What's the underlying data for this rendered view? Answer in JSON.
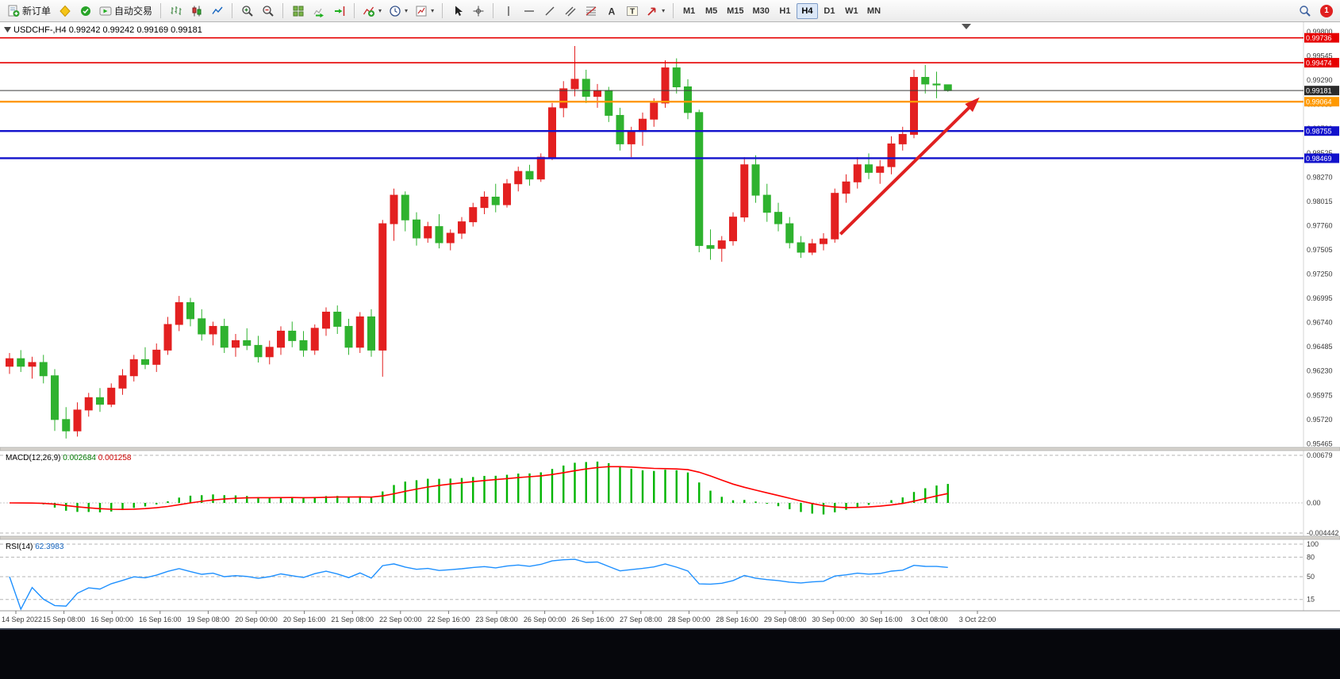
{
  "app": {
    "toolbar": {
      "new_order_label": "新订单",
      "autotrading_label": "自动交易",
      "timeframes": [
        "M1",
        "M5",
        "M15",
        "M30",
        "H1",
        "H4",
        "D1",
        "W1",
        "MN"
      ],
      "active_timeframe": "H4",
      "notification_count": "1"
    }
  },
  "chart_data": {
    "type": "candlestick",
    "title": "USDCHF-,H4",
    "ohlc_text": "0.99242 0.99242 0.99169 0.99181",
    "colors": {
      "bull": "#e32020",
      "bear": "#2fb22f"
    },
    "candles": [
      [
        0.9628,
        0.9642,
        0.962,
        0.9636
      ],
      [
        0.9636,
        0.9645,
        0.9622,
        0.9628
      ],
      [
        0.9628,
        0.9638,
        0.9615,
        0.9632
      ],
      [
        0.9632,
        0.964,
        0.961,
        0.9618
      ],
      [
        0.9618,
        0.9625,
        0.956,
        0.9572
      ],
      [
        0.9572,
        0.9585,
        0.9552,
        0.956
      ],
      [
        0.956,
        0.959,
        0.9554,
        0.9582
      ],
      [
        0.9582,
        0.96,
        0.9575,
        0.9595
      ],
      [
        0.9595,
        0.9605,
        0.958,
        0.9588
      ],
      [
        0.9588,
        0.961,
        0.9585,
        0.9605
      ],
      [
        0.9605,
        0.9625,
        0.9598,
        0.9618
      ],
      [
        0.9618,
        0.964,
        0.9612,
        0.9635
      ],
      [
        0.9635,
        0.9648,
        0.9625,
        0.963
      ],
      [
        0.963,
        0.9652,
        0.9622,
        0.9645
      ],
      [
        0.9645,
        0.968,
        0.964,
        0.9672
      ],
      [
        0.9672,
        0.9702,
        0.9665,
        0.9695
      ],
      [
        0.9695,
        0.97,
        0.967,
        0.9678
      ],
      [
        0.9678,
        0.9688,
        0.9655,
        0.9662
      ],
      [
        0.9662,
        0.9675,
        0.965,
        0.967
      ],
      [
        0.967,
        0.9678,
        0.9642,
        0.9648
      ],
      [
        0.9648,
        0.9662,
        0.9638,
        0.9655
      ],
      [
        0.9655,
        0.9668,
        0.9645,
        0.965
      ],
      [
        0.965,
        0.966,
        0.9632,
        0.9638
      ],
      [
        0.9638,
        0.9655,
        0.963,
        0.9648
      ],
      [
        0.9648,
        0.967,
        0.964,
        0.9665
      ],
      [
        0.9665,
        0.9675,
        0.9648,
        0.9655
      ],
      [
        0.9655,
        0.9665,
        0.9638,
        0.9645
      ],
      [
        0.9645,
        0.9672,
        0.964,
        0.9668
      ],
      [
        0.9668,
        0.969,
        0.966,
        0.9685
      ],
      [
        0.9685,
        0.9692,
        0.9662,
        0.967
      ],
      [
        0.967,
        0.9678,
        0.964,
        0.9648
      ],
      [
        0.9648,
        0.9685,
        0.9642,
        0.968
      ],
      [
        0.968,
        0.9688,
        0.9638,
        0.9645
      ],
      [
        0.9645,
        0.9782,
        0.9617,
        0.9778
      ],
      [
        0.9778,
        0.9815,
        0.976,
        0.9808
      ],
      [
        0.9808,
        0.9812,
        0.977,
        0.9782
      ],
      [
        0.9782,
        0.979,
        0.9755,
        0.9763
      ],
      [
        0.9763,
        0.978,
        0.9758,
        0.9775
      ],
      [
        0.9775,
        0.9788,
        0.9752,
        0.9758
      ],
      [
        0.9758,
        0.9772,
        0.975,
        0.9768
      ],
      [
        0.9768,
        0.9785,
        0.9762,
        0.978
      ],
      [
        0.978,
        0.98,
        0.9775,
        0.9795
      ],
      [
        0.9795,
        0.9812,
        0.9788,
        0.9806
      ],
      [
        0.9806,
        0.982,
        0.979,
        0.9798
      ],
      [
        0.9798,
        0.9825,
        0.9795,
        0.982
      ],
      [
        0.982,
        0.9838,
        0.9812,
        0.9833
      ],
      [
        0.9833,
        0.984,
        0.9818,
        0.9825
      ],
      [
        0.9825,
        0.9852,
        0.9822,
        0.9848
      ],
      [
        0.9848,
        0.9905,
        0.9845,
        0.99
      ],
      [
        0.99,
        0.9928,
        0.989,
        0.992
      ],
      [
        0.992,
        0.9965,
        0.9912,
        0.993
      ],
      [
        0.993,
        0.994,
        0.9905,
        0.9912
      ],
      [
        0.9912,
        0.9925,
        0.99,
        0.9918
      ],
      [
        0.9918,
        0.9922,
        0.9885,
        0.9892
      ],
      [
        0.9892,
        0.99,
        0.9855,
        0.9862
      ],
      [
        0.9862,
        0.988,
        0.9848,
        0.9875
      ],
      [
        0.9875,
        0.9895,
        0.986,
        0.9888
      ],
      [
        0.9888,
        0.991,
        0.988,
        0.9905
      ],
      [
        0.9905,
        0.995,
        0.99,
        0.9942
      ],
      [
        0.9942,
        0.9952,
        0.9915,
        0.9922
      ],
      [
        0.9922,
        0.993,
        0.9888,
        0.9895
      ],
      [
        0.9895,
        0.9898,
        0.9748,
        0.9755
      ],
      [
        0.9755,
        0.9772,
        0.974,
        0.9752
      ],
      [
        0.9752,
        0.9765,
        0.9738,
        0.976
      ],
      [
        0.976,
        0.979,
        0.9755,
        0.9785
      ],
      [
        0.9785,
        0.9848,
        0.978,
        0.984
      ],
      [
        0.984,
        0.985,
        0.98,
        0.9808
      ],
      [
        0.9808,
        0.982,
        0.978,
        0.979
      ],
      [
        0.979,
        0.98,
        0.977,
        0.9778
      ],
      [
        0.9778,
        0.9785,
        0.9752,
        0.9758
      ],
      [
        0.9758,
        0.9765,
        0.9742,
        0.9748
      ],
      [
        0.9748,
        0.9762,
        0.9745,
        0.9757
      ],
      [
        0.9757,
        0.9768,
        0.975,
        0.9762
      ],
      [
        0.9762,
        0.9815,
        0.9758,
        0.981
      ],
      [
        0.981,
        0.983,
        0.98,
        0.9822
      ],
      [
        0.9822,
        0.9848,
        0.9815,
        0.984
      ],
      [
        0.984,
        0.9852,
        0.9825,
        0.9832
      ],
      [
        0.9832,
        0.9845,
        0.982,
        0.9838
      ],
      [
        0.9838,
        0.987,
        0.983,
        0.9862
      ],
      [
        0.9862,
        0.988,
        0.9855,
        0.9872
      ],
      [
        0.9872,
        0.994,
        0.9868,
        0.9932
      ],
      [
        0.9932,
        0.9945,
        0.9915,
        0.9925
      ],
      [
        0.9925,
        0.9938,
        0.991,
        0.9924
      ],
      [
        0.99242,
        0.99242,
        0.99169,
        0.99181
      ]
    ],
    "y_axis": {
      "labels": [
        "0.99800",
        "0.99545",
        "0.99290",
        "0.99035",
        "0.98780",
        "0.98525",
        "0.98270",
        "0.98015",
        "0.97760",
        "0.97505",
        "0.97250",
        "0.96995",
        "0.96740",
        "0.96485",
        "0.96230",
        "0.95975",
        "0.95720",
        "0.95465"
      ]
    },
    "x_axis": {
      "labels": [
        "14 Sep 2022",
        "15 Sep 08:00",
        "16 Sep 00:00",
        "16 Sep 16:00",
        "19 Sep 08:00",
        "20 Sep 00:00",
        "20 Sep 16:00",
        "21 Sep 08:00",
        "22 Sep 00:00",
        "22 Sep 16:00",
        "23 Sep 08:00",
        "26 Sep 00:00",
        "26 Sep 16:00",
        "27 Sep 08:00",
        "28 Sep 00:00",
        "28 Sep 16:00",
        "29 Sep 08:00",
        "30 Sep 00:00",
        "30 Sep 16:00",
        "3 Oct 08:00",
        "3 Oct 22:00"
      ]
    },
    "hlines": [
      {
        "price": 0.99736,
        "label": "0.99736",
        "color": "#e60000",
        "width": 1.6
      },
      {
        "price": 0.99474,
        "label": "0.99474",
        "color": "#e60000",
        "width": 1.6
      },
      {
        "price": 0.99064,
        "label": "0.99064",
        "color": "#ff9900",
        "width": 2.4
      },
      {
        "price": 0.98755,
        "label": "0.98755",
        "color": "#1212cc",
        "width": 2.4
      },
      {
        "price": 0.98469,
        "label": "0.98469",
        "color": "#1212cc",
        "width": 2.4
      }
    ],
    "current_price": 0.99181,
    "current_price_label": "0.99181",
    "trend_arrow": {
      "from_index": 73.5,
      "from_price": 0.9767,
      "to_index": 85.5,
      "to_price": 0.99074,
      "color": "#e02020"
    },
    "macd": {
      "name": "MACD(12,26,9)",
      "value_main": "0.002684",
      "value_signal": "0.001258",
      "axis_labels": [
        "0.00679",
        "0.00",
        "-0.004442"
      ],
      "histogram_color": "#00b400",
      "signal_color": "#ff0000"
    },
    "rsi": {
      "name": "RSI(14)",
      "value": "62.3983",
      "period": 14,
      "levels": [
        100,
        80,
        50,
        15
      ],
      "axis_labels": [
        "100",
        "80",
        "50",
        "15"
      ],
      "line_color": "#1E90FF"
    }
  }
}
